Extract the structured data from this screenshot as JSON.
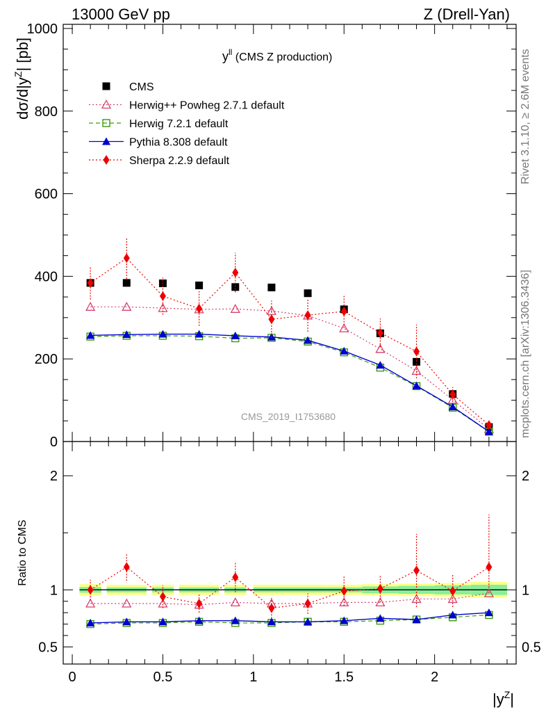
{
  "header": {
    "energy_label": "13000 GeV pp",
    "process_label": "Z (Drell-Yan)"
  },
  "side_labels": {
    "rivet": "Rivet 3.1.10, ≥ 2.6M events",
    "mcplots": "mcplots.cern.ch [arXiv:1306.3436]"
  },
  "plot_title_main": "y",
  "plot_title_sup": "ll",
  "plot_title_rest": " (CMS Z production)",
  "watermark": "CMS_2019_I1753680",
  "colors": {
    "cms": "#000000",
    "herwig_powheg": "#d6426e",
    "herwig721": "#3a9a0a",
    "pythia": "#0000d0",
    "sherpa": "#ee0000",
    "band_yellow": "#ffff88",
    "band_green": "#88ee99"
  },
  "chart_data": [
    {
      "type": "scatter",
      "xlabel_main": "|y",
      "xlabel_sup": "Z",
      "xlabel_end": "|",
      "ylabel": "dσ/d|yᴢ| [pb]",
      "ylabel_main": "dσ/d|y",
      "ylabel_sup": "Z",
      "ylabel_end": "| [pb]",
      "xlim": [
        -0.05,
        2.45
      ],
      "ylim": [
        0,
        1010
      ],
      "y_ticks": [
        0,
        200,
        400,
        600,
        800,
        1000
      ],
      "y_tick_labels": [
        "0",
        "200",
        "400",
        "600",
        "800",
        "1000"
      ],
      "legend_position": "top-left",
      "x": [
        0.1,
        0.3,
        0.5,
        0.7,
        0.9,
        1.1,
        1.3,
        1.5,
        1.7,
        1.9,
        2.1,
        2.3
      ],
      "series": [
        {
          "key": "cms",
          "name": "CMS",
          "style": "points-square",
          "values": [
            384,
            384,
            383,
            378,
            374,
            373,
            359,
            320,
            262,
            193,
            115,
            35
          ]
        },
        {
          "key": "herwig_powheg",
          "name": "Herwig++ Powheg 2.7.1 default",
          "style": "dotted-open-triangle",
          "values": [
            326,
            326,
            323,
            320,
            321,
            316,
            305,
            274,
            224,
            171,
            101,
            30
          ]
        },
        {
          "key": "herwig721",
          "name": "Herwig 7.2.1 default",
          "style": "dashed-open-square",
          "values": [
            254,
            256,
            256,
            255,
            250,
            251,
            242,
            216,
            179,
            134,
            82,
            24
          ]
        },
        {
          "key": "pythia",
          "name": "Pythia 8.308 default",
          "style": "solid-filled-triangle",
          "values": [
            257,
            259,
            260,
            260,
            256,
            253,
            245,
            219,
            185,
            135,
            84,
            24
          ]
        },
        {
          "key": "sherpa",
          "name": "Sherpa 2.2.9 default",
          "style": "dotted-filled-diamond",
          "values": [
            384,
            444,
            352,
            322,
            409,
            296,
            306,
            315,
            263,
            218,
            114,
            40
          ],
          "err_low": [
            40,
            50,
            45,
            42,
            48,
            45,
            40,
            40,
            35,
            65,
            18,
            8
          ],
          "err_high": [
            40,
            50,
            45,
            42,
            48,
            45,
            40,
            40,
            35,
            65,
            18,
            8
          ]
        }
      ]
    },
    {
      "type": "line",
      "ylabel": "Ratio to CMS",
      "xlim": [
        -0.05,
        2.45
      ],
      "ylim": [
        0.35,
        2.3
      ],
      "y_ticks": [
        0.5,
        1,
        2
      ],
      "y_tick_labels": [
        "0.5",
        "1",
        "2"
      ],
      "x_ticks": [
        0,
        0.5,
        1,
        1.5,
        2
      ],
      "x_tick_labels": [
        "0",
        "0.5",
        "1",
        "1.5",
        "2"
      ],
      "x": [
        0.1,
        0.3,
        0.5,
        0.7,
        0.9,
        1.1,
        1.3,
        1.5,
        1.7,
        1.9,
        2.1,
        2.3
      ],
      "band_yellow": [
        [
          0.04,
          0.16
        ],
        [
          0.19,
          0.41
        ],
        [
          0.44,
          0.56
        ],
        [
          0.59,
          0.81
        ],
        [
          0.84,
          0.96
        ],
        [
          1.0,
          1.2
        ],
        [
          1.2,
          1.4
        ],
        [
          1.4,
          1.6
        ],
        [
          1.6,
          1.8
        ],
        [
          1.8,
          2.0
        ],
        [
          2.0,
          2.2
        ],
        [
          2.2,
          2.4
        ]
      ],
      "band_yellow_half": [
        0.05,
        0.045,
        0.045,
        0.045,
        0.045,
        0.045,
        0.045,
        0.045,
        0.05,
        0.055,
        0.06,
        0.07
      ],
      "band_green_half": [
        0.025,
        0.022,
        0.022,
        0.022,
        0.022,
        0.022,
        0.022,
        0.022,
        0.03,
        0.035,
        0.04,
        0.045
      ],
      "series": [
        {
          "key": "herwig_powheg",
          "name": "Herwig++ Powheg 2.7.1 default",
          "values": [
            0.88,
            0.88,
            0.88,
            0.87,
            0.89,
            0.88,
            0.88,
            0.89,
            0.89,
            0.92,
            0.92,
            0.97
          ]
        },
        {
          "key": "herwig721",
          "name": "Herwig 7.2.1 default",
          "values": [
            0.7,
            0.71,
            0.71,
            0.72,
            0.71,
            0.71,
            0.72,
            0.72,
            0.73,
            0.74,
            0.76,
            0.78
          ]
        },
        {
          "key": "pythia",
          "name": "Pythia 8.308 default",
          "values": [
            0.71,
            0.72,
            0.72,
            0.73,
            0.73,
            0.72,
            0.72,
            0.73,
            0.75,
            0.74,
            0.78,
            0.8
          ]
        },
        {
          "key": "sherpa",
          "name": "Sherpa 2.2.9 default",
          "values": [
            1.0,
            1.2,
            0.94,
            0.88,
            1.11,
            0.84,
            0.88,
            0.99,
            1.01,
            1.17,
            0.99,
            1.2
          ],
          "err_low": [
            0.09,
            0.12,
            0.1,
            0.08,
            0.13,
            0.09,
            0.09,
            0.13,
            0.12,
            0.32,
            0.14,
            0.23
          ],
          "err_high": [
            0.09,
            0.12,
            0.1,
            0.08,
            0.13,
            0.09,
            0.09,
            0.13,
            0.12,
            0.32,
            0.14,
            0.46
          ]
        }
      ]
    }
  ]
}
